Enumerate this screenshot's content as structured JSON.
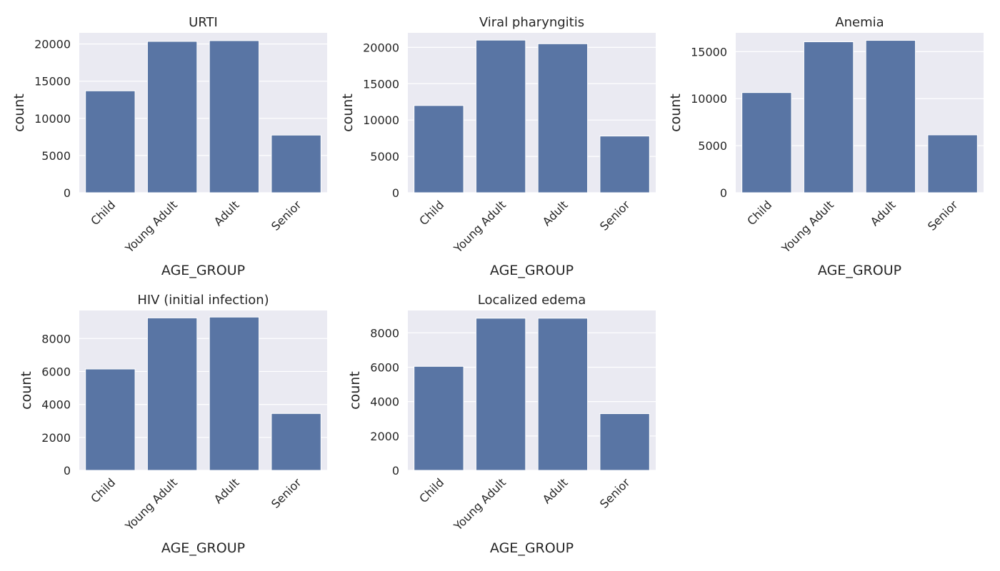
{
  "figure": {
    "background": "#ffffff",
    "plot_background": "#eaeaf2",
    "bar_color": "#5975a4",
    "grid_color": "#ffffff"
  },
  "chart_data": [
    {
      "type": "bar",
      "title": "URTI",
      "xlabel": "AGE_GROUP",
      "ylabel": "count",
      "categories": [
        "Child",
        "Young Adult",
        "Adult",
        "Senior"
      ],
      "values": [
        13700,
        20350,
        20450,
        7750
      ],
      "ylim": [
        0,
        21500
      ],
      "yticks": [
        0,
        5000,
        10000,
        15000,
        20000
      ],
      "grid": true
    },
    {
      "type": "bar",
      "title": "Viral pharyngitis",
      "xlabel": "AGE_GROUP",
      "ylabel": "count",
      "categories": [
        "Child",
        "Young Adult",
        "Adult",
        "Senior"
      ],
      "values": [
        12000,
        21000,
        20500,
        7800
      ],
      "ylim": [
        0,
        22000
      ],
      "yticks": [
        0,
        5000,
        10000,
        15000,
        20000
      ],
      "grid": true
    },
    {
      "type": "bar",
      "title": "Anemia",
      "xlabel": "AGE_GROUP",
      "ylabel": "count",
      "categories": [
        "Child",
        "Young Adult",
        "Adult",
        "Senior"
      ],
      "values": [
        10650,
        16050,
        16200,
        6150
      ],
      "ylim": [
        0,
        17000
      ],
      "yticks": [
        0,
        5000,
        10000,
        15000
      ],
      "grid": true
    },
    {
      "type": "bar",
      "title": "HIV (initial infection)",
      "xlabel": "AGE_GROUP",
      "ylabel": "count",
      "categories": [
        "Child",
        "Young Adult",
        "Adult",
        "Senior"
      ],
      "values": [
        6150,
        9250,
        9300,
        3450
      ],
      "ylim": [
        0,
        9700
      ],
      "yticks": [
        0,
        2000,
        4000,
        6000,
        8000
      ],
      "grid": true
    },
    {
      "type": "bar",
      "title": "Localized edema",
      "xlabel": "AGE_GROUP",
      "ylabel": "count",
      "categories": [
        "Child",
        "Young Adult",
        "Adult",
        "Senior"
      ],
      "values": [
        6050,
        8850,
        8850,
        3300
      ],
      "ylim": [
        0,
        9300
      ],
      "yticks": [
        0,
        2000,
        4000,
        6000,
        8000
      ],
      "grid": true
    }
  ]
}
